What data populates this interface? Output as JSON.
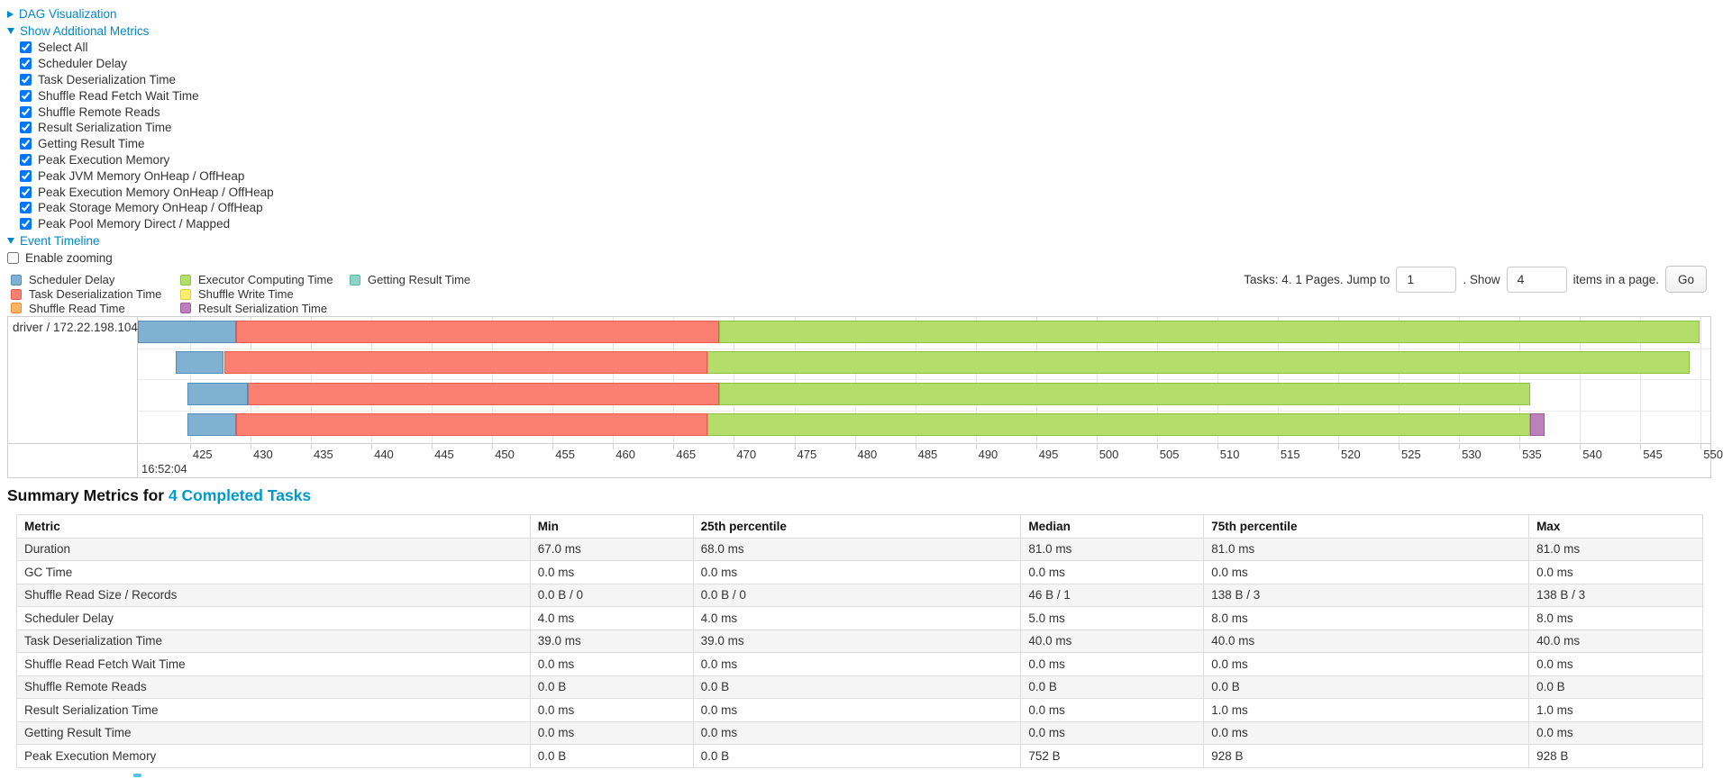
{
  "toggles": {
    "dag": "DAG Visualization",
    "metrics": "Show Additional Metrics",
    "timeline": "Event Timeline"
  },
  "metric_checkboxes": [
    {
      "label": "Select All",
      "checked": true
    },
    {
      "label": "Scheduler Delay",
      "checked": true
    },
    {
      "label": "Task Deserialization Time",
      "checked": true
    },
    {
      "label": "Shuffle Read Fetch Wait Time",
      "checked": true
    },
    {
      "label": "Shuffle Remote Reads",
      "checked": true
    },
    {
      "label": "Result Serialization Time",
      "checked": true
    },
    {
      "label": "Getting Result Time",
      "checked": true
    },
    {
      "label": "Peak Execution Memory",
      "checked": true
    },
    {
      "label": "Peak JVM Memory OnHeap / OffHeap",
      "checked": true
    },
    {
      "label": "Peak Execution Memory OnHeap / OffHeap",
      "checked": true
    },
    {
      "label": "Peak Storage Memory OnHeap / OffHeap",
      "checked": true
    },
    {
      "label": "Peak Pool Memory Direct / Mapped",
      "checked": true
    }
  ],
  "enable_zooming": {
    "label": "Enable zooming",
    "checked": false
  },
  "legend": [
    {
      "key": "scheduler-delay",
      "label": "Scheduler Delay",
      "fill": "#80B1D3",
      "border": "#548EB5"
    },
    {
      "key": "task-deserialization",
      "label": "Task Deserialization Time",
      "fill": "#FB8072",
      "border": "#E85A50"
    },
    {
      "key": "shuffle-read",
      "label": "Shuffle Read Time",
      "fill": "#FDB462",
      "border": "#E89034"
    },
    {
      "key": "executor-computing",
      "label": "Executor Computing Time",
      "fill": "#B3DE69",
      "border": "#8CC148"
    },
    {
      "key": "shuffle-write",
      "label": "Shuffle Write Time",
      "fill": "#FFED6F",
      "border": "#E0CC4A"
    },
    {
      "key": "result-serialization",
      "label": "Result Serialization Time",
      "fill": "#BC80BD",
      "border": "#9A5B9E"
    },
    {
      "key": "getting-result",
      "label": "Getting Result Time",
      "fill": "#8DD3C7",
      "border": "#5CB8A6"
    }
  ],
  "pagination": {
    "prefix": "Tasks: 4. 1 Pages. Jump to",
    "jump_value": "1",
    "mid": ". Show",
    "show_value": "4",
    "suffix": "items in a page.",
    "go_label": "Go"
  },
  "chart_data": {
    "type": "timeline",
    "row_label": "driver / 172.22.198.104",
    "x_domain": [
      420.68,
      550.8
    ],
    "x_tick_step": 5,
    "x_ticks": [
      425,
      430,
      435,
      440,
      445,
      450,
      455,
      460,
      465,
      470,
      475,
      480,
      485,
      490,
      495,
      500,
      505,
      510,
      515,
      520,
      525,
      530,
      535,
      540,
      545,
      550
    ],
    "x_major_label": "16:52:04",
    "tasks": [
      {
        "segments": [
          {
            "key": "scheduler-delay",
            "start": 420.68,
            "end": 428.8
          },
          {
            "key": "task-deserialization",
            "start": 428.8,
            "end": 468.8
          },
          {
            "key": "executor-computing",
            "start": 468.8,
            "end": 549.9
          }
        ]
      },
      {
        "segments": [
          {
            "key": "scheduler-delay",
            "start": 423.8,
            "end": 427.8
          },
          {
            "key": "task-deserialization",
            "start": 427.8,
            "end": 467.8
          },
          {
            "key": "executor-computing",
            "start": 467.8,
            "end": 549.1
          }
        ]
      },
      {
        "segments": [
          {
            "key": "scheduler-delay",
            "start": 424.8,
            "end": 429.8
          },
          {
            "key": "task-deserialization",
            "start": 429.8,
            "end": 468.8
          },
          {
            "key": "executor-computing",
            "start": 468.8,
            "end": 535.9
          }
        ]
      },
      {
        "segments": [
          {
            "key": "scheduler-delay",
            "start": 424.8,
            "end": 428.8
          },
          {
            "key": "task-deserialization",
            "start": 428.8,
            "end": 467.8
          },
          {
            "key": "executor-computing",
            "start": 467.8,
            "end": 535.9
          },
          {
            "key": "result-serialization",
            "start": 535.9,
            "end": 537.1
          }
        ]
      }
    ]
  },
  "summary": {
    "title_prefix": "Summary Metrics for ",
    "link_text": "4 Completed Tasks"
  },
  "table": {
    "headers": [
      "Metric",
      "Min",
      "25th percentile",
      "Median",
      "75th percentile",
      "Max"
    ],
    "rows": [
      [
        "Duration",
        "67.0 ms",
        "68.0 ms",
        "81.0 ms",
        "81.0 ms",
        "81.0 ms"
      ],
      [
        "GC Time",
        "0.0 ms",
        "0.0 ms",
        "0.0 ms",
        "0.0 ms",
        "0.0 ms"
      ],
      [
        "Shuffle Read Size / Records",
        "0.0 B / 0",
        "0.0 B / 0",
        "46 B / 1",
        "138 B / 3",
        "138 B / 3"
      ],
      [
        "Scheduler Delay",
        "4.0 ms",
        "4.0 ms",
        "5.0 ms",
        "8.0 ms",
        "8.0 ms"
      ],
      [
        "Task Deserialization Time",
        "39.0 ms",
        "39.0 ms",
        "40.0 ms",
        "40.0 ms",
        "40.0 ms"
      ],
      [
        "Shuffle Read Fetch Wait Time",
        "0.0 ms",
        "0.0 ms",
        "0.0 ms",
        "0.0 ms",
        "0.0 ms"
      ],
      [
        "Shuffle Remote Reads",
        "0.0 B",
        "0.0 B",
        "0.0 B",
        "0.0 B",
        "0.0 B"
      ],
      [
        "Result Serialization Time",
        "0.0 ms",
        "0.0 ms",
        "0.0 ms",
        "1.0 ms",
        "1.0 ms"
      ],
      [
        "Getting Result Time",
        "0.0 ms",
        "0.0 ms",
        "0.0 ms",
        "0.0 ms",
        "0.0 ms"
      ],
      [
        "Peak Execution Memory",
        "0.0 B",
        "0.0 B",
        "752 B",
        "928 B",
        "928 B"
      ]
    ]
  }
}
